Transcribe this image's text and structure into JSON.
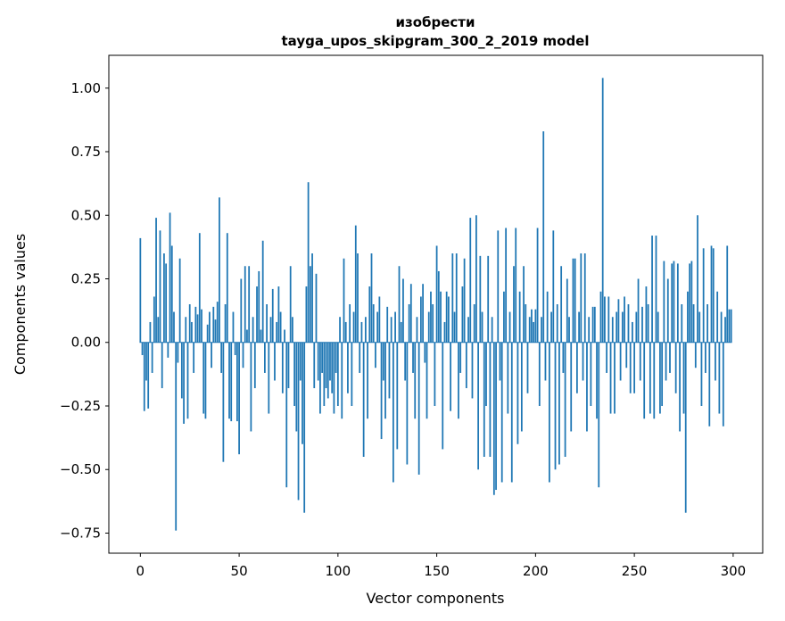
{
  "chart_data": {
    "type": "bar",
    "title_line1": "изобрести",
    "title_line2": "tayga_upos_skipgram_300_2_2019 model",
    "xlabel": "Vector components",
    "ylabel": "Components values",
    "bar_color": "#1f77b4",
    "grid": false,
    "legend": "none",
    "xlim": [
      -15.95,
      314.95
    ],
    "ylim": [
      -0.829,
      1.129
    ],
    "x_ticks": [
      0,
      50,
      100,
      150,
      200,
      250,
      300
    ],
    "x_tick_labels": [
      "0",
      "50",
      "100",
      "150",
      "200",
      "250",
      "300"
    ],
    "y_ticks": [
      -0.75,
      -0.5,
      -0.25,
      0.0,
      0.25,
      0.5,
      0.75,
      1.0
    ],
    "y_tick_labels": [
      "-0.75",
      "-0.50",
      "-0.25",
      "0.00",
      "0.25",
      "0.50",
      "0.75",
      "1.00"
    ],
    "x": "indices 0..299 (vector component index)",
    "values": [
      0.41,
      -0.05,
      -0.27,
      -0.15,
      -0.26,
      0.08,
      -0.12,
      0.18,
      0.49,
      0.1,
      0.44,
      -0.18,
      0.35,
      0.31,
      -0.06,
      0.51,
      0.38,
      0.12,
      -0.74,
      -0.08,
      0.33,
      -0.22,
      -0.32,
      0.1,
      -0.3,
      0.15,
      0.08,
      -0.12,
      0.14,
      0.11,
      0.43,
      0.13,
      -0.28,
      -0.3,
      0.07,
      0.12,
      -0.1,
      0.14,
      0.09,
      0.16,
      0.57,
      -0.12,
      -0.47,
      0.15,
      0.43,
      -0.3,
      -0.31,
      0.12,
      -0.05,
      -0.31,
      -0.44,
      0.25,
      -0.1,
      0.3,
      0.05,
      0.3,
      -0.35,
      0.1,
      -0.18,
      0.22,
      0.28,
      0.05,
      0.4,
      -0.12,
      0.15,
      -0.28,
      0.1,
      0.21,
      -0.15,
      0.08,
      0.22,
      0.12,
      -0.2,
      0.05,
      -0.57,
      -0.18,
      0.3,
      0.1,
      -0.25,
      -0.35,
      -0.62,
      -0.15,
      -0.4,
      -0.67,
      0.22,
      0.63,
      0.3,
      0.35,
      -0.18,
      0.27,
      -0.15,
      -0.28,
      -0.12,
      -0.25,
      -0.18,
      -0.22,
      -0.15,
      -0.2,
      -0.28,
      -0.12,
      -0.25,
      0.1,
      -0.3,
      0.33,
      0.08,
      -0.2,
      0.15,
      -0.25,
      0.12,
      0.46,
      0.35,
      -0.12,
      0.08,
      -0.45,
      0.1,
      -0.3,
      0.22,
      0.35,
      0.15,
      -0.1,
      0.12,
      0.18,
      -0.38,
      -0.15,
      -0.3,
      0.14,
      -0.22,
      0.1,
      -0.55,
      0.12,
      -0.42,
      0.3,
      0.08,
      0.25,
      -0.15,
      -0.48,
      0.15,
      0.23,
      -0.12,
      -0.3,
      0.1,
      -0.52,
      0.18,
      0.23,
      -0.08,
      -0.3,
      0.12,
      0.2,
      0.15,
      -0.25,
      0.38,
      0.28,
      0.2,
      -0.42,
      0.08,
      0.2,
      0.18,
      -0.27,
      0.35,
      0.12,
      0.35,
      -0.3,
      -0.12,
      0.22,
      0.33,
      -0.18,
      0.1,
      0.49,
      -0.22,
      0.15,
      0.5,
      -0.5,
      0.34,
      0.12,
      -0.45,
      -0.25,
      0.34,
      -0.45,
      0.1,
      -0.6,
      -0.58,
      0.44,
      -0.15,
      -0.55,
      0.2,
      0.45,
      -0.28,
      0.12,
      -0.55,
      0.3,
      0.45,
      -0.4,
      0.2,
      -0.35,
      0.3,
      0.15,
      -0.2,
      0.1,
      0.13,
      0.08,
      0.13,
      0.45,
      -0.25,
      0.1,
      0.83,
      -0.15,
      0.2,
      -0.55,
      0.12,
      0.44,
      -0.5,
      0.15,
      -0.48,
      0.3,
      -0.12,
      -0.45,
      0.25,
      0.1,
      -0.35,
      0.33,
      0.33,
      -0.2,
      0.12,
      0.35,
      -0.15,
      0.35,
      -0.35,
      0.1,
      -0.25,
      0.14,
      0.14,
      -0.3,
      -0.57,
      0.2,
      1.04,
      0.18,
      -0.12,
      0.18,
      -0.28,
      0.1,
      -0.28,
      0.12,
      0.17,
      -0.15,
      0.12,
      0.18,
      -0.1,
      0.15,
      -0.2,
      0.08,
      -0.2,
      0.12,
      0.25,
      -0.15,
      0.14,
      -0.3,
      0.22,
      0.15,
      -0.28,
      0.42,
      -0.3,
      0.42,
      0.12,
      -0.28,
      -0.25,
      0.32,
      -0.15,
      0.25,
      -0.12,
      0.31,
      0.32,
      -0.2,
      0.31,
      -0.35,
      0.15,
      -0.28,
      -0.67,
      0.2,
      0.31,
      0.32,
      0.15,
      -0.1,
      0.5,
      0.12,
      -0.25,
      0.37,
      -0.12,
      0.15,
      -0.33,
      0.38,
      0.37,
      -0.15,
      0.2,
      -0.28,
      0.12,
      -0.33,
      0.1,
      0.38,
      0.13,
      0.13
    ]
  }
}
